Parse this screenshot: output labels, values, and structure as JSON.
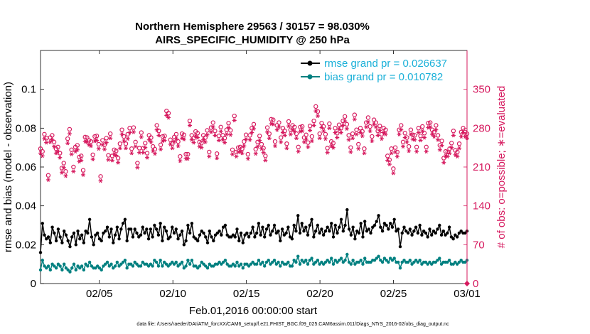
{
  "chart_data": {
    "type": "line",
    "title": [
      "Northern Hemisphere 29563 / 30157 = 98.030%",
      "AIRS_SPECIFIC_HUMIDITY @ 250 hPa"
    ],
    "xlabel": "Feb.01,2016 00:00:00 start",
    "ylabel": "rmse and bias (model - observation)",
    "y2label": "# of obs: o=possible; ∗=evaluated",
    "footnote": "data file: /Users/raeder/DAI/ATM_forcXX/CAM6_setup/f.e21.FHIST_BGC.f09_025.CAM6assim.011/Diags_NTrS_2016-02/obs_diag_output.nc",
    "x_range": [
      1,
      30
    ],
    "ylim": [
      0,
      0.12
    ],
    "y2lim": [
      0,
      420
    ],
    "x_ticks": [
      {
        "v": 5,
        "label": "02/05"
      },
      {
        "v": 10,
        "label": "02/10"
      },
      {
        "v": 15,
        "label": "02/15"
      },
      {
        "v": 20,
        "label": "02/20"
      },
      {
        "v": 25,
        "label": "02/25"
      },
      {
        "v": 30,
        "label": "03/01"
      }
    ],
    "y_ticks": [
      {
        "v": 0,
        "label": "0"
      },
      {
        "v": 0.02,
        "label": "0.02"
      },
      {
        "v": 0.04,
        "label": "0.04"
      },
      {
        "v": 0.06,
        "label": "0.06"
      },
      {
        "v": 0.08,
        "label": "0.08"
      },
      {
        "v": 0.1,
        "label": "0.1"
      }
    ],
    "y2_ticks": [
      {
        "v": 0,
        "label": "0"
      },
      {
        "v": 70,
        "label": "70"
      },
      {
        "v": 140,
        "label": "140"
      },
      {
        "v": 210,
        "label": "210"
      },
      {
        "v": 280,
        "label": "280"
      },
      {
        "v": 350,
        "label": "350"
      }
    ],
    "series": [
      {
        "name": "rmse grand pr = 0.026637",
        "color": "#000000",
        "values": [
          0.016,
          0.031,
          0.025,
          0.023,
          0.024,
          0.021,
          0.029,
          0.026,
          0.022,
          0.028,
          0.024,
          0.021,
          0.027,
          0.025,
          0.022,
          0.019,
          0.024,
          0.026,
          0.02,
          0.027,
          0.023,
          0.025,
          0.021,
          0.027,
          0.026,
          0.033,
          0.024,
          0.02,
          0.025,
          0.026,
          0.023,
          0.022,
          0.026,
          0.027,
          0.029,
          0.024,
          0.028,
          0.021,
          0.025,
          0.029,
          0.023,
          0.028,
          0.031,
          0.033,
          0.022,
          0.028,
          0.028,
          0.024,
          0.028,
          0.026,
          0.024,
          0.025,
          0.029,
          0.026,
          0.028,
          0.023,
          0.028,
          0.024,
          0.03,
          0.028,
          0.025,
          0.031,
          0.022,
          0.029,
          0.027,
          0.023,
          0.024,
          0.029,
          0.026,
          0.028,
          0.023,
          0.025,
          0.027,
          0.02,
          0.022,
          0.03,
          0.026,
          0.031,
          0.024,
          0.023,
          0.022,
          0.025,
          0.027,
          0.026,
          0.024,
          0.021,
          0.027,
          0.024,
          0.022,
          0.025,
          0.026,
          0.027,
          0.025,
          0.029,
          0.03,
          0.025,
          0.024,
          0.024,
          0.025,
          0.024,
          0.028,
          0.022,
          0.026,
          0.021,
          0.025,
          0.026,
          0.024,
          0.026,
          0.029,
          0.024,
          0.026,
          0.031,
          0.025,
          0.029,
          0.024,
          0.028,
          0.03,
          0.025,
          0.027,
          0.03,
          0.026,
          0.027,
          0.022,
          0.028,
          0.025,
          0.026,
          0.029,
          0.024,
          0.023,
          0.03,
          0.027,
          0.035,
          0.026,
          0.031,
          0.027,
          0.029,
          0.025,
          0.03,
          0.033,
          0.024,
          0.027,
          0.03,
          0.026,
          0.028,
          0.025,
          0.027,
          0.029,
          0.027,
          0.031,
          0.024,
          0.03,
          0.026,
          0.029,
          0.033,
          0.027,
          0.03,
          0.038,
          0.028,
          0.025,
          0.029,
          0.023,
          0.027,
          0.026,
          0.031,
          0.024,
          0.032,
          0.027,
          0.028,
          0.026,
          0.029,
          0.03,
          0.032,
          0.035,
          0.029,
          0.027,
          0.031,
          0.03,
          0.028,
          0.031,
          0.029,
          0.033,
          0.027,
          0.028,
          0.019,
          0.026,
          0.029,
          0.027,
          0.026,
          0.028,
          0.025,
          0.027,
          0.029,
          0.026,
          0.03,
          0.025,
          0.027,
          0.026,
          0.024,
          0.028,
          0.025,
          0.027,
          0.026,
          0.028,
          0.03,
          0.025,
          0.027,
          0.025,
          0.026,
          0.029,
          0.024,
          0.023,
          0.025,
          0.024,
          0.026,
          0.027,
          0.026,
          0.026,
          0.027
        ]
      },
      {
        "name": "bias grand pr = 0.010782",
        "color": "#008080",
        "values": [
          0.007,
          0.012,
          0.009,
          0.008,
          0.009,
          0.007,
          0.01,
          0.009,
          0.008,
          0.01,
          0.009,
          0.007,
          0.01,
          0.008,
          0.007,
          0.006,
          0.008,
          0.01,
          0.007,
          0.009,
          0.008,
          0.009,
          0.007,
          0.01,
          0.009,
          0.011,
          0.009,
          0.008,
          0.008,
          0.009,
          0.008,
          0.007,
          0.009,
          0.01,
          0.011,
          0.009,
          0.01,
          0.008,
          0.009,
          0.011,
          0.009,
          0.01,
          0.011,
          0.012,
          0.008,
          0.01,
          0.01,
          0.009,
          0.011,
          0.01,
          0.009,
          0.009,
          0.011,
          0.01,
          0.01,
          0.009,
          0.01,
          0.009,
          0.012,
          0.011,
          0.009,
          0.012,
          0.009,
          0.011,
          0.01,
          0.009,
          0.01,
          0.011,
          0.01,
          0.011,
          0.009,
          0.01,
          0.011,
          0.008,
          0.009,
          0.012,
          0.01,
          0.012,
          0.009,
          0.009,
          0.008,
          0.009,
          0.011,
          0.01,
          0.009,
          0.008,
          0.01,
          0.009,
          0.009,
          0.01,
          0.01,
          0.011,
          0.01,
          0.011,
          0.012,
          0.01,
          0.009,
          0.009,
          0.01,
          0.009,
          0.011,
          0.009,
          0.01,
          0.008,
          0.01,
          0.01,
          0.009,
          0.01,
          0.011,
          0.01,
          0.01,
          0.012,
          0.01,
          0.011,
          0.009,
          0.011,
          0.012,
          0.01,
          0.011,
          0.012,
          0.01,
          0.011,
          0.009,
          0.011,
          0.01,
          0.01,
          0.011,
          0.009,
          0.009,
          0.012,
          0.011,
          0.014,
          0.01,
          0.012,
          0.011,
          0.012,
          0.01,
          0.012,
          0.013,
          0.01,
          0.011,
          0.012,
          0.01,
          0.011,
          0.01,
          0.011,
          0.012,
          0.011,
          0.013,
          0.01,
          0.012,
          0.011,
          0.012,
          0.013,
          0.011,
          0.012,
          0.015,
          0.011,
          0.01,
          0.012,
          0.01,
          0.011,
          0.011,
          0.012,
          0.01,
          0.013,
          0.011,
          0.011,
          0.011,
          0.012,
          0.012,
          0.013,
          0.014,
          0.012,
          0.011,
          0.013,
          0.012,
          0.011,
          0.013,
          0.012,
          0.013,
          0.011,
          0.011,
          0.008,
          0.011,
          0.012,
          0.011,
          0.011,
          0.012,
          0.01,
          0.011,
          0.012,
          0.011,
          0.012,
          0.01,
          0.011,
          0.011,
          0.01,
          0.011,
          0.01,
          0.011,
          0.011,
          0.012,
          0.013,
          0.01,
          0.011,
          0.011,
          0.011,
          0.012,
          0.01,
          0.01,
          0.011,
          0.01,
          0.011,
          0.012,
          0.011,
          0.011,
          0.012
        ]
      }
    ],
    "obs_counts": {
      "color": "#d6195e",
      "possible_marker": "o",
      "evaluated_marker": "∗",
      "values": [
        238,
        233,
        264,
        257,
        190,
        258,
        262,
        250,
        238,
        241,
        230,
        203,
        212,
        197,
        256,
        273,
        236,
        205,
        241,
        244,
        223,
        225,
        199,
        259,
        258,
        253,
        251,
        227,
        260,
        261,
        246,
        188,
        253,
        245,
        257,
        226,
        265,
        225,
        236,
        234,
        221,
        247,
        272,
        260,
        247,
        264,
        275,
        238,
        276,
        250,
        212,
        239,
        267,
        239,
        248,
        230,
        262,
        258,
        242,
        237,
        280,
        270,
        245,
        260,
        261,
        306,
        302,
        254,
        247,
        259,
        264,
        251,
        224,
        265,
        263,
        228,
        228,
        288,
        262,
        257,
        269,
        266,
        250,
        248,
        262,
        258,
        271,
        232,
        276,
        285,
        270,
        229,
        261,
        277,
        262,
        257,
        272,
        284,
        271,
        236,
        297,
        232,
        240,
        241,
        238,
        251,
        263,
        228,
        262,
        275,
        282,
        237,
        250,
        261,
        246,
        239,
        225,
        276,
        265,
        291,
        290,
        251,
        280,
        285,
        258,
        275,
        270,
        247,
        287,
        272,
        280,
        277,
        265,
        241,
        277,
        278,
        258,
        263,
        249,
        279,
        260,
        288,
        314,
        305,
        265,
        284,
        278,
        264,
        239,
        283,
        251,
        248,
        275,
        266,
        281,
        275,
        288,
        296,
        282,
        262,
        240,
        265,
        299,
        272,
        246,
        275,
        269,
        238,
        285,
        294,
        278,
        260,
        290,
        285,
        270,
        279,
        264,
        275,
        272,
        225,
        218,
        238,
        202,
        240,
        232,
        272,
        280,
        250,
        266,
        258,
        242,
        272,
        263,
        262,
        241,
        275,
        261,
        278,
        266,
        241,
        284,
        285,
        272,
        268,
        280,
        262,
        244,
        252,
        221,
        233,
        232,
        238,
        248,
        270,
        235,
        232,
        247,
        268,
        275,
        268,
        265
      ]
    }
  }
}
